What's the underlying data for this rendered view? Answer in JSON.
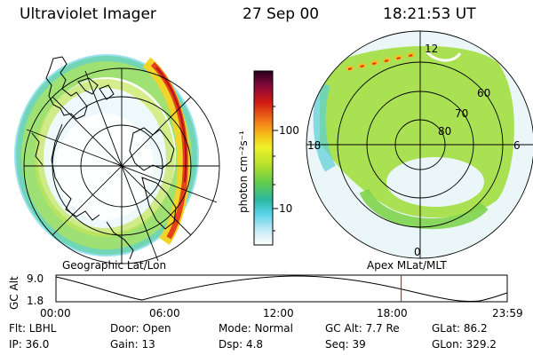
{
  "header": {
    "instrument": "Ultraviolet Imager",
    "date": "27 Sep 00",
    "time": "18:21:53 UT"
  },
  "geo_panel": {
    "label": "Geographic Lat/Lon"
  },
  "apex_panel": {
    "label": "Apex MLat/MLT",
    "lat_labels": [
      "60",
      "70",
      "80"
    ],
    "mlt_labels": [
      "12",
      "18",
      "6",
      "0"
    ]
  },
  "colorbar": {
    "unit": "photon cm⁻²s⁻¹",
    "ticks": [
      "100",
      "10"
    ],
    "scale": "log",
    "colors": [
      "#ffffff",
      "#c8ecf6",
      "#58d2e8",
      "#2ab79f",
      "#62cd4a",
      "#b6e02c",
      "#eef22a",
      "#f7b818",
      "#f07018",
      "#d11a12",
      "#8a0a3a",
      "#280020"
    ]
  },
  "altitude_plot": {
    "ylabel": "GC Alt",
    "y_ticks": [
      "9.0",
      "1.8"
    ],
    "x_ticks": [
      "00:00",
      "06:00",
      "12:00",
      "18:00",
      "23:59"
    ],
    "current_time_hours": 18.36,
    "current_time_color": "#e00000"
  },
  "info": {
    "row1": [
      "Flt: LBHL",
      "Door: Open",
      "Mode: Normal",
      "GC Alt: 7.7 Re",
      "GLat:  86.2"
    ],
    "row2": [
      "IP: 36.0",
      "Gain: 13",
      "Dsp:    4.8",
      "Seq: 39",
      "GLon: 329.2"
    ]
  }
}
